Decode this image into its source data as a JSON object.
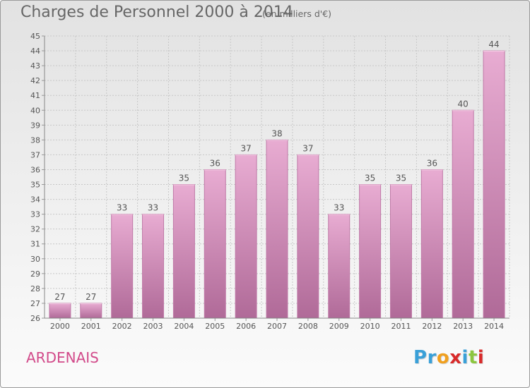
{
  "header": {
    "title": "Charges de Personnel 2000 à 2014",
    "subtitle": "(en milliers d'€)"
  },
  "footer": {
    "commune": "ARDENAIS",
    "logo_text": "Proxiti",
    "logo_colors": [
      "#3aa0d8",
      "#3aa0d8",
      "#f0a020",
      "#d82a2a",
      "#3aa0d8",
      "#8cc63f",
      "#d82a2a"
    ]
  },
  "colors": {
    "bar_top": "#e8acd2",
    "bar_bottom": "#b06a98",
    "bar_edge": "#c07aa8",
    "grid": "#c8c8c8",
    "text": "#555555"
  },
  "chart_data": {
    "type": "bar",
    "categories": [
      "2000",
      "2001",
      "2002",
      "2003",
      "2004",
      "2005",
      "2006",
      "2007",
      "2008",
      "2009",
      "2010",
      "2011",
      "2012",
      "2013",
      "2014"
    ],
    "values": [
      27,
      27,
      33,
      33,
      35,
      36,
      37,
      38,
      37,
      33,
      35,
      35,
      36,
      40,
      44
    ],
    "data_labels": [
      "27",
      "27",
      "33",
      "33",
      "35",
      "36",
      "37",
      "38",
      "37",
      "33",
      "35",
      "35",
      "36",
      "40",
      "44"
    ],
    "yticks": [
      "26",
      "27",
      "28",
      "29",
      "30",
      "31",
      "32",
      "33",
      "34",
      "35",
      "36",
      "37",
      "38",
      "39",
      "40",
      "41",
      "42",
      "43",
      "44",
      "45"
    ],
    "ylim": [
      26,
      45
    ],
    "grid": true
  }
}
